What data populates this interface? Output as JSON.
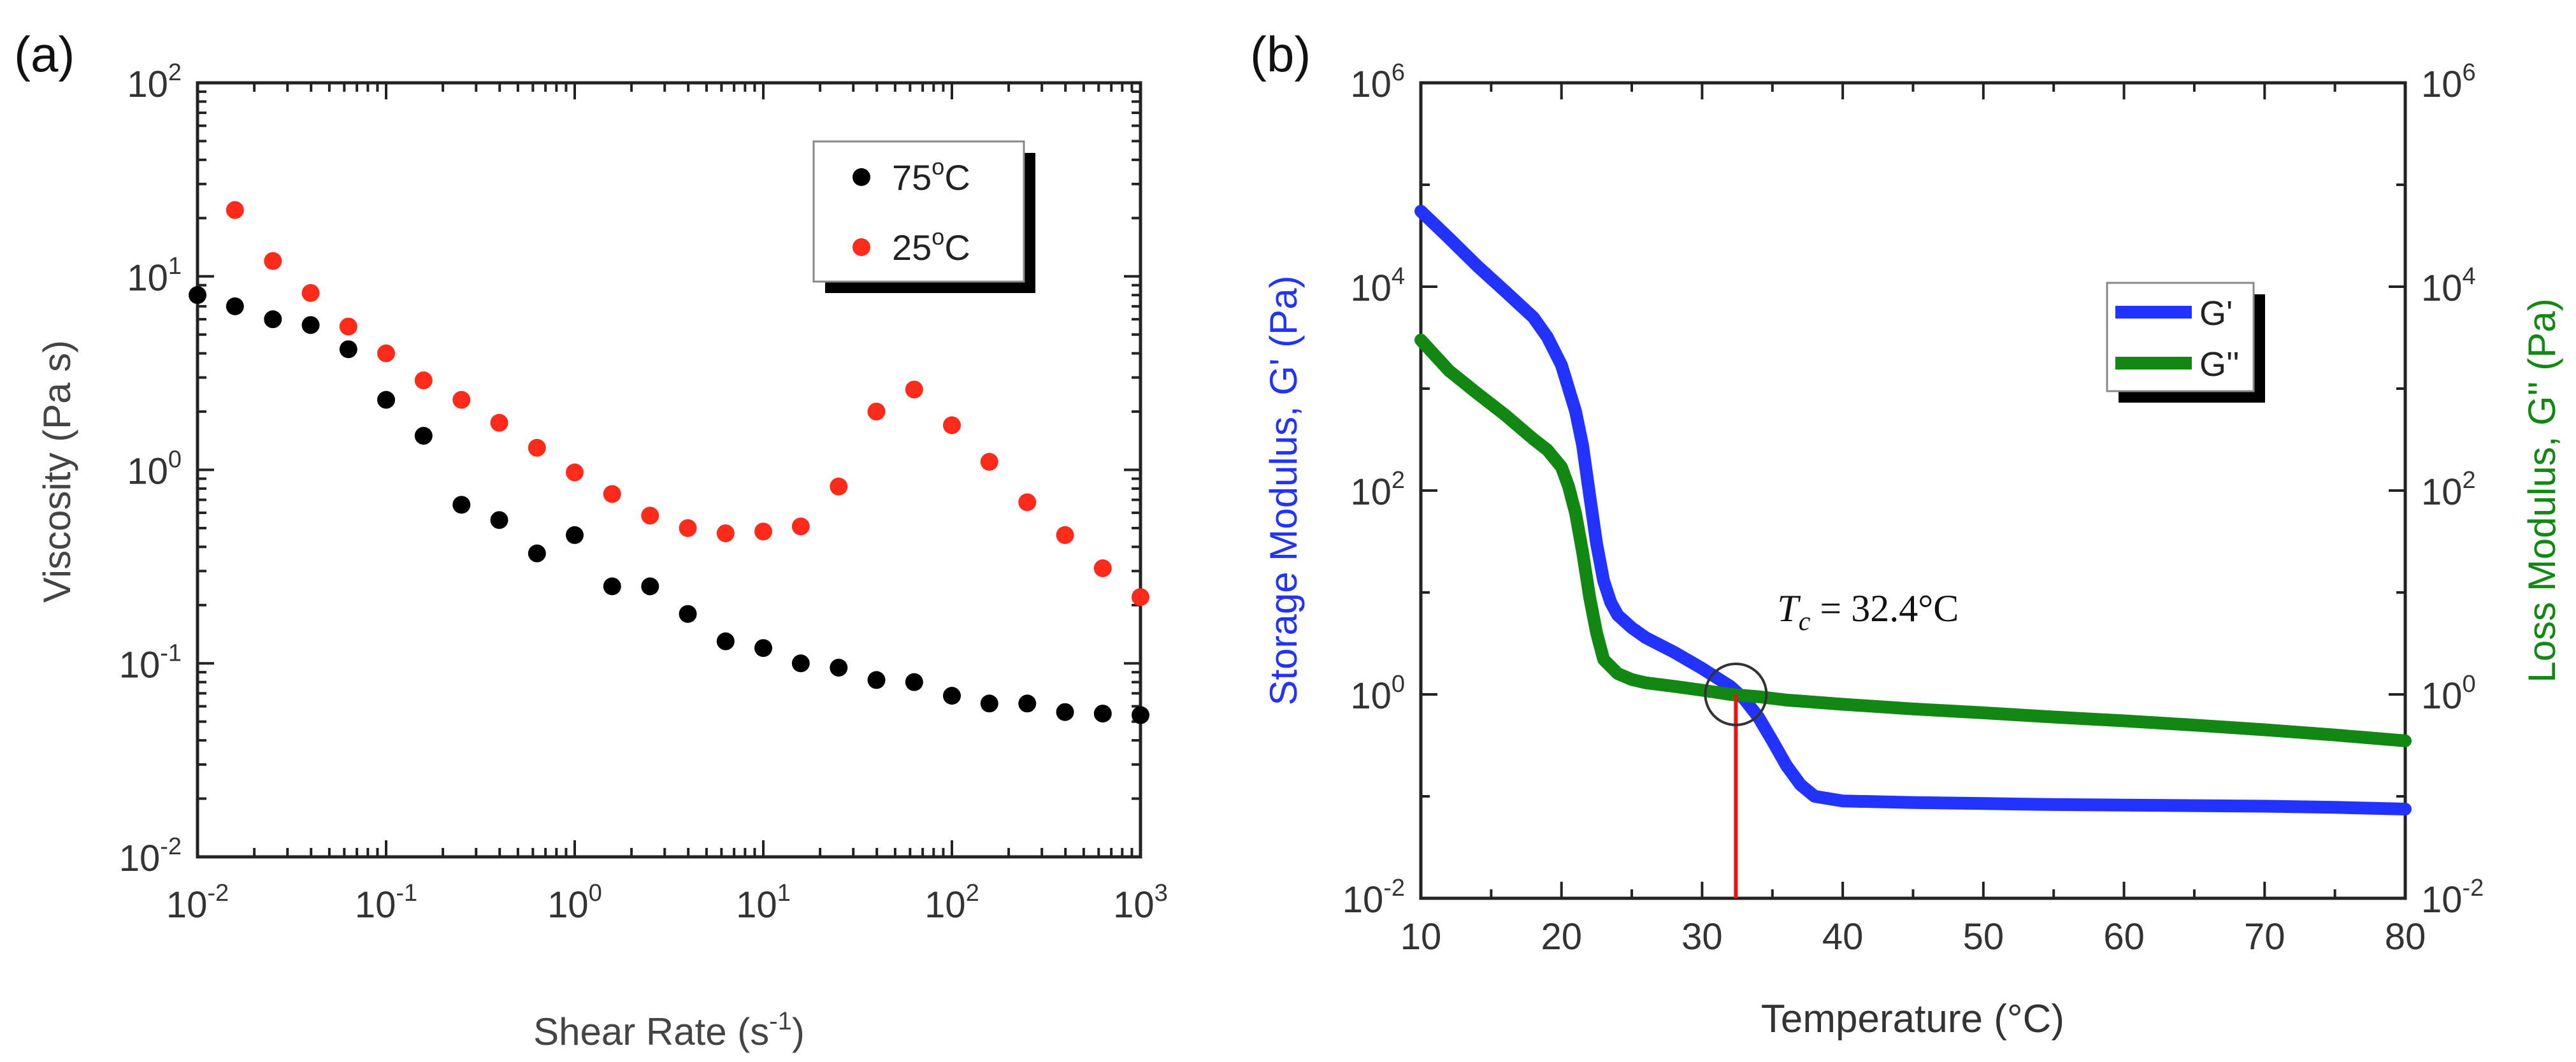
{
  "chart_data": [
    {
      "panel_label": "(a)",
      "type": "scatter",
      "xlabel": "Shear Rate (s",
      "xlabel_sup": "-1",
      "xlabel_end": ")",
      "ylabel": "Viscosity (Pa s)",
      "xscale": "log",
      "yscale": "log",
      "xlim": [
        0.01,
        1000
      ],
      "ylim": [
        0.01,
        100
      ],
      "x_ticks": [
        {
          "base": "10",
          "exp": "-2"
        },
        {
          "base": "10",
          "exp": "-1"
        },
        {
          "base": "10",
          "exp": "0"
        },
        {
          "base": "10",
          "exp": "1"
        },
        {
          "base": "10",
          "exp": "2"
        },
        {
          "base": "10",
          "exp": "3"
        }
      ],
      "y_ticks": [
        {
          "base": "10",
          "exp": "-2"
        },
        {
          "base": "10",
          "exp": "-1"
        },
        {
          "base": "10",
          "exp": "0"
        },
        {
          "base": "10",
          "exp": "1"
        },
        {
          "base": "10",
          "exp": "2"
        }
      ],
      "legend": {
        "position": "top-right"
      },
      "series": [
        {
          "name": "75°C",
          "label_main": "75",
          "label_sup": "o",
          "label_end": "C",
          "color": "#000000",
          "x": [
            0.01,
            0.0158,
            0.0251,
            0.0398,
            0.0631,
            0.1,
            0.158,
            0.251,
            0.398,
            0.631,
            1.0,
            1.58,
            2.51,
            3.98,
            6.31,
            10,
            15.8,
            25.1,
            39.8,
            63.1,
            100,
            158,
            251,
            398,
            631,
            1000
          ],
          "y": [
            8.0,
            7.0,
            6.0,
            5.6,
            4.2,
            2.3,
            1.5,
            0.66,
            0.55,
            0.37,
            0.46,
            0.25,
            0.25,
            0.18,
            0.13,
            0.12,
            0.1,
            0.095,
            0.082,
            0.08,
            0.068,
            0.062,
            0.062,
            0.056,
            0.055,
            0.054
          ]
        },
        {
          "name": "25°C",
          "label_main": "25",
          "label_sup": "o",
          "label_end": "C",
          "color": "#ff2a1a",
          "x": [
            0.0158,
            0.0251,
            0.0398,
            0.0631,
            0.1,
            0.158,
            0.251,
            0.398,
            0.631,
            1.0,
            1.58,
            2.51,
            3.98,
            6.31,
            10,
            15.8,
            25.1,
            39.8,
            63.1,
            100,
            158,
            251,
            398,
            631,
            1000
          ],
          "y": [
            22,
            12,
            8.2,
            5.5,
            4.0,
            2.9,
            2.3,
            1.75,
            1.3,
            0.97,
            0.75,
            0.58,
            0.5,
            0.47,
            0.48,
            0.51,
            0.82,
            2.0,
            2.6,
            1.7,
            1.1,
            0.68,
            0.46,
            0.31,
            0.22
          ]
        }
      ]
    },
    {
      "panel_label": "(b)",
      "type": "line",
      "xlabel": "Temperature (°C)",
      "ylabel_left": "Storage Modulus, G' (Pa)",
      "ylabel_right": "Loss Modulus, G'' (Pa)",
      "xlim": [
        10,
        80
      ],
      "ylim": [
        0.01,
        1000000
      ],
      "yscale": "log",
      "x_ticks": [
        "10",
        "20",
        "30",
        "40",
        "50",
        "60",
        "70",
        "80"
      ],
      "y_ticks": [
        {
          "base": "10",
          "exp": "-2"
        },
        {
          "base": "10",
          "exp": "0"
        },
        {
          "base": "10",
          "exp": "2"
        },
        {
          "base": "10",
          "exp": "4"
        },
        {
          "base": "10",
          "exp": "6"
        }
      ],
      "legend": {
        "position": "top-right"
      },
      "annotation": {
        "label": "T",
        "subscript": "c",
        "value": " = 32.4°C",
        "x": 32.4,
        "y": 1.0
      },
      "series": [
        {
          "name": "G'",
          "color": "#2233ff",
          "axis": "left",
          "x": [
            10,
            12,
            14,
            16,
            18,
            19,
            20,
            21,
            21.5,
            22,
            22.5,
            23,
            23.5,
            24,
            25,
            26,
            28,
            30,
            32,
            33,
            34,
            35,
            36,
            37,
            38,
            40,
            45,
            50,
            55,
            60,
            65,
            70,
            75,
            80
          ],
          "y": [
            55000,
            30000,
            16000,
            9000,
            5000,
            3200,
            1700,
            600,
            280,
            90,
            30,
            13,
            8,
            6,
            4.5,
            3.6,
            2.6,
            1.8,
            1.2,
            0.9,
            0.6,
            0.35,
            0.2,
            0.13,
            0.1,
            0.09,
            0.087,
            0.085,
            0.083,
            0.082,
            0.081,
            0.08,
            0.078,
            0.075
          ]
        },
        {
          "name": "G''",
          "color": "#118811",
          "axis": "right",
          "x": [
            10,
            12,
            14,
            16,
            18,
            19,
            20,
            20.5,
            21,
            21.5,
            22,
            22.5,
            23,
            24,
            25,
            26,
            28,
            30,
            32,
            34,
            36,
            40,
            45,
            50,
            55,
            60,
            65,
            70,
            75,
            80
          ],
          "y": [
            3000,
            1500,
            900,
            550,
            320,
            250,
            170,
            110,
            60,
            25,
            9,
            4,
            2.2,
            1.6,
            1.4,
            1.3,
            1.2,
            1.1,
            1.0,
            0.95,
            0.88,
            0.8,
            0.72,
            0.66,
            0.6,
            0.55,
            0.5,
            0.45,
            0.4,
            0.35
          ]
        }
      ]
    }
  ]
}
